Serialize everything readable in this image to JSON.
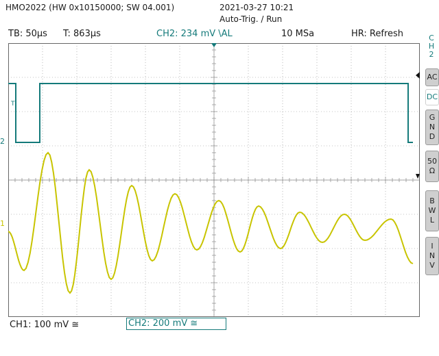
{
  "header": {
    "device": "HMO2022 (HW 0x10150000; SW 04.001)",
    "datetime": "2021-03-27 10:21",
    "trigger_state": "Auto-Trig. / Run"
  },
  "status_bar": {
    "timebase": "TB: 50µs",
    "trigger_time": "T: 863µs",
    "ch2_trigger": "CH2: 234 mV \\AL",
    "sample_rate": "10 MSa",
    "hr_mode": "HR: Refresh"
  },
  "side_menu": {
    "title": [
      "C",
      "H",
      "2"
    ],
    "buttons": [
      {
        "label": [
          "AC"
        ],
        "active": false
      },
      {
        "label": [
          "DC"
        ],
        "active": true
      },
      {
        "label": [
          "G",
          "N",
          "D"
        ],
        "active": false
      },
      {
        "label": [
          "50",
          "Ω"
        ],
        "active": false
      },
      {
        "label": [
          "B",
          "W",
          "L"
        ],
        "active": false
      },
      {
        "label": [
          "I",
          "N",
          "V"
        ],
        "active": false
      }
    ]
  },
  "markers": {
    "ch2": "2",
    "ch1": "1",
    "trigger": "T"
  },
  "channels": {
    "ch1": {
      "label": "CH1: 100 mV ≅",
      "color": "#c8c400"
    },
    "ch2": {
      "label": "CH2: 200 mV ≅",
      "color": "#147a7a"
    }
  },
  "colors": {
    "grid": "#888888",
    "screen_border": "#666666",
    "accent": "#147a7a"
  }
}
